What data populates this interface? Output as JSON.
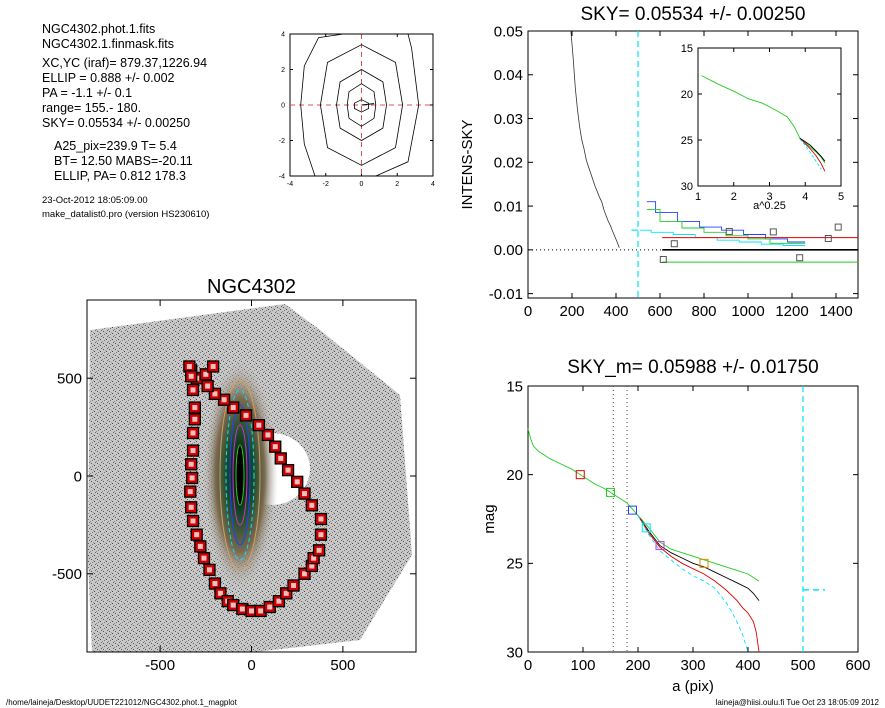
{
  "header": {
    "lines_a": [
      "NGC4302.phot.1.fits",
      "NGC4302.1.finmask.fits"
    ],
    "lines_b": [
      "XC,YC (iraf)=   879.37,1226.94",
      "ELLIP = 0.888 +/- 0.002",
      "PA    =  -1.1 +/-   0.1",
      "range=  155.-  180.",
      "SKY= 0.05534 +/- 0.00250"
    ],
    "lines_c": [
      "A25_pix=239.9   T= 5.4",
      "BT=  12.50   MABS=-20.11",
      "ELLIP, PA= 0.812  178.3"
    ],
    "date": "23-Oct-2012 18:05:09.00",
    "program": "make_datalist0.pro (version HS230610)"
  },
  "footer": {
    "left": "/home/laineja/Desktop/UUDET221012/NGC4302.phot.1_magplot",
    "right": "laineja@hiisi.oulu.fi  Tue Oct 23 18:05:09 2012"
  },
  "colors": {
    "cyan": "#00e5ff",
    "red": "#e00000",
    "green": "#22cc22",
    "blue": "#2040ff",
    "magenta": "#cc33cc",
    "orange": "#e08a00",
    "gray": "#666666",
    "maskred": "#cc0000"
  },
  "chart_data": [
    {
      "id": "contour",
      "type": "contour",
      "xlim": [
        -4,
        4
      ],
      "ylim": [
        -4,
        4
      ],
      "xticks": [
        -4,
        -2,
        0,
        2,
        4
      ],
      "yticks": [
        -4,
        -2,
        0,
        2,
        4
      ],
      "contours": [
        [
          [
            0.0,
            1.2
          ],
          [
            0.7,
            0.75
          ],
          [
            0.8,
            0
          ],
          [
            0.7,
            -0.75
          ],
          [
            0.0,
            -1.2
          ],
          [
            -0.7,
            -0.75
          ],
          [
            -0.8,
            0
          ],
          [
            -0.7,
            0.75
          ]
        ],
        [
          [
            0.0,
            2.0
          ],
          [
            1.2,
            1.3
          ],
          [
            1.4,
            0
          ],
          [
            1.2,
            -1.3
          ],
          [
            0.0,
            -2.0
          ],
          [
            -1.2,
            -1.3
          ],
          [
            -1.4,
            0
          ],
          [
            -1.2,
            1.3
          ]
        ],
        [
          [
            0.0,
            3.4
          ],
          [
            1.9,
            2.4
          ],
          [
            2.3,
            0
          ],
          [
            1.9,
            -2.4
          ],
          [
            0.0,
            -3.4
          ],
          [
            -1.9,
            -2.4
          ],
          [
            -2.3,
            0
          ],
          [
            -1.9,
            2.4
          ]
        ],
        [
          [
            -1.0,
            4.0
          ],
          [
            2.6,
            4.0
          ],
          [
            2.8,
            3.2
          ],
          [
            3.2,
            0
          ],
          [
            2.6,
            -3.2
          ],
          [
            0.8,
            -4.0
          ],
          [
            -2.6,
            -4.0
          ],
          [
            -3.2,
            -2.2
          ],
          [
            -3.4,
            0
          ],
          [
            -3.2,
            2.2
          ],
          [
            -2.4,
            3.8
          ]
        ]
      ],
      "inner": [
        [
          0,
          0.3
        ],
        [
          0.4,
          0.1
        ],
        [
          0.4,
          -0.2
        ],
        [
          0,
          -0.4
        ],
        [
          -0.4,
          -0.2
        ],
        [
          -0.4,
          0.1
        ]
      ],
      "center_spokes": [
        [
          0,
          0
        ],
        [
          0.7,
          0.08
        ]
      ]
    },
    {
      "id": "sky",
      "type": "line",
      "title": "SKY= 0.05534 +/- 0.00250",
      "ylabel": "INTENS-SKY",
      "xlim": [
        0,
        1500
      ],
      "ylim": [
        -0.011,
        0.05
      ],
      "xticks": [
        0,
        200,
        400,
        600,
        800,
        1000,
        1200,
        1400
      ],
      "yticks": [
        -0.01,
        0.0,
        0.01,
        0.02,
        0.03,
        0.04,
        0.05
      ],
      "ytick_labels": [
        "-0.01",
        "0.00",
        "0.01",
        "0.02",
        "0.03",
        "0.04",
        "0.05"
      ],
      "vline_cyan": 500,
      "profile": {
        "x": [
          195,
          205,
          215,
          225,
          235,
          245,
          255,
          265,
          275,
          285,
          295,
          305,
          315,
          325,
          335,
          345,
          355,
          365,
          375,
          385,
          395,
          405,
          415
        ],
        "y": [
          0.05,
          0.044,
          0.037,
          0.032,
          0.028,
          0.025,
          0.023,
          0.0205,
          0.019,
          0.0175,
          0.016,
          0.0145,
          0.0133,
          0.012,
          0.011,
          0.0092,
          0.0078,
          0.0065,
          0.0055,
          0.0042,
          0.003,
          0.0018,
          0.0005
        ]
      },
      "steps": [
        {
          "name": "",
          "color": "#2040ff",
          "x": [
            540,
            580,
            580,
            680,
            680,
            780,
            780,
            880,
            880,
            980,
            980,
            1080,
            1080,
            1180,
            1180,
            1260
          ],
          "y": [
            0.011,
            0.011,
            0.0085,
            0.0085,
            0.0065,
            0.0065,
            0.0052,
            0.0052,
            0.0045,
            0.0045,
            0.0035,
            0.0035,
            0.0025,
            0.0025,
            0.0018,
            0.0018
          ]
        },
        {
          "name": "",
          "color": "#22cc22",
          "x": [
            540,
            600,
            600,
            700,
            700,
            800,
            800,
            900,
            900,
            1000,
            1000,
            1100,
            1100,
            1260
          ],
          "y": [
            0.0092,
            0.0092,
            0.0065,
            0.0065,
            0.005,
            0.005,
            0.004,
            0.004,
            0.0032,
            0.0032,
            0.0025,
            0.0025,
            0.0015,
            0.0015
          ]
        },
        {
          "name": "",
          "color": "#00e5ff",
          "x": [
            510,
            560,
            560,
            660,
            660,
            760,
            760,
            860,
            860,
            960,
            960,
            1060,
            1060,
            1160,
            1160,
            1260
          ],
          "y": [
            0.0045,
            0.0045,
            0.004,
            0.004,
            0.0035,
            0.0035,
            0.0028,
            0.0028,
            0.0022,
            0.0022,
            0.0018,
            0.0018,
            0.0013,
            0.0013,
            0.001,
            0.001
          ]
        }
      ],
      "hlines": [
        {
          "color": "#e00000",
          "y": 0.0028,
          "x": [
            610,
            1500
          ]
        },
        {
          "color": "#22cc22",
          "y": -0.0028,
          "x": [
            610,
            1500
          ]
        },
        {
          "color": "#000000",
          "y": 0.0,
          "x": [
            610,
            1500
          ]
        }
      ],
      "squares": {
        "x": [
          615,
          665,
          915,
          1115,
          1235,
          1365,
          1410
        ],
        "y": [
          -0.0022,
          0.0014,
          0.0042,
          0.0041,
          -0.0018,
          0.0026,
          0.0052
        ]
      },
      "inset": {
        "xlabel": "a^0.25",
        "xlim": [
          1,
          5
        ],
        "ylim": [
          15,
          30
        ],
        "xticks": [
          1,
          2,
          3,
          4,
          5
        ],
        "yticks": [
          15,
          20,
          25,
          30
        ],
        "series": [
          {
            "name": "",
            "color": "#22cc22",
            "x": [
              1.1,
              1.3,
              1.6,
              2.0,
              2.4,
              2.8,
              3.2,
              3.5,
              3.7,
              3.85,
              4.0,
              4.15,
              4.3,
              4.45,
              4.55
            ],
            "y": [
              18.0,
              18.4,
              19.0,
              19.7,
              20.5,
              21.0,
              21.8,
              22.5,
              23.6,
              24.8,
              25.3,
              25.8,
              26.3,
              26.9,
              27.5
            ]
          },
          {
            "name": "",
            "color": "#e00000",
            "x": [
              3.85,
              4.0,
              4.15,
              4.3,
              4.45,
              4.55
            ],
            "y": [
              24.8,
              25.4,
              26.0,
              26.7,
              27.6,
              28.4
            ]
          },
          {
            "name": "",
            "color": "#000000",
            "x": [
              3.85,
              4.0,
              4.15,
              4.3,
              4.45,
              4.55
            ],
            "y": [
              24.8,
              25.2,
              25.6,
              26.2,
              26.8,
              27.3
            ]
          },
          {
            "name": "",
            "color": "#00e5ff",
            "x": [
              3.85,
              4.0,
              4.15,
              4.3,
              4.45
            ],
            "y": [
              24.9,
              25.6,
              26.4,
              27.3,
              28.2
            ]
          }
        ]
      }
    },
    {
      "id": "image",
      "type": "scatter",
      "title": "NGC4302",
      "xlim": [
        -900,
        900
      ],
      "ylim": [
        -900,
        900
      ],
      "xticks": [
        -500,
        0,
        500
      ],
      "yticks": [
        -500,
        0,
        500
      ],
      "mask_squares": {
        "x": [
          -310,
          -310,
          -320,
          -320,
          -330,
          -325,
          -335,
          -330,
          -320,
          -300,
          -280,
          -260,
          -230,
          -200,
          -170,
          -130,
          -100,
          -50,
          0,
          50,
          100,
          150,
          190,
          230,
          290,
          330,
          340,
          370,
          380,
          380,
          330,
          290,
          250,
          200,
          160,
          130,
          90,
          40,
          -30,
          -100,
          -150,
          -200,
          -240,
          -300,
          -330,
          -340,
          -330,
          -320,
          -250,
          -210
        ],
        "y": [
          350,
          290,
          220,
          130,
          60,
          -10,
          -80,
          -160,
          -230,
          -300,
          -360,
          -420,
          -480,
          -550,
          -600,
          -640,
          -660,
          -680,
          -690,
          -690,
          -670,
          -640,
          -600,
          -560,
          -500,
          -460,
          -420,
          -380,
          -300,
          -220,
          -150,
          -90,
          -30,
          30,
          90,
          150,
          210,
          260,
          310,
          350,
          390,
          420,
          460,
          500,
          540,
          560,
          510,
          440,
          520,
          560
        ]
      }
    },
    {
      "id": "mag",
      "type": "line",
      "title": "SKY_m=  0.05988 +/- 0.01750",
      "xlabel": "a (pix)",
      "ylabel": "mag",
      "xlim": [
        0,
        600
      ],
      "ylim": [
        15,
        30
      ],
      "xticks": [
        0,
        100,
        200,
        300,
        400,
        500,
        600
      ],
      "yticks": [
        15,
        20,
        25,
        30
      ],
      "vlines_dotted": [
        155,
        180
      ],
      "vline_cyan": 500,
      "cyan_tail": {
        "x": [
          500,
          540
        ],
        "y": [
          26.5,
          26.5
        ]
      },
      "series": [
        {
          "name": "",
          "color": "#22cc22",
          "x": [
            0,
            5,
            10,
            20,
            40,
            60,
            80,
            100,
            120,
            140,
            160,
            180,
            200,
            220,
            240,
            260,
            280,
            300,
            320,
            340,
            360,
            380,
            400,
            420
          ],
          "y": [
            17.4,
            18.0,
            18.4,
            18.7,
            19.1,
            19.4,
            19.7,
            20.1,
            20.5,
            20.8,
            21.2,
            21.6,
            22.3,
            23.0,
            23.8,
            24.2,
            24.4,
            24.6,
            24.8,
            25.0,
            25.2,
            25.4,
            25.6,
            26.0
          ]
        },
        {
          "name": "",
          "color": "#000000",
          "x": [
            200,
            220,
            240,
            260,
            280,
            300,
            320,
            340,
            360,
            380,
            400,
            410,
            420
          ],
          "y": [
            22.3,
            23.2,
            24.0,
            24.4,
            24.7,
            25.0,
            25.2,
            25.5,
            25.8,
            26.1,
            26.4,
            26.7,
            27.1
          ]
        },
        {
          "name": "",
          "color": "#e00000",
          "x": [
            200,
            220,
            240,
            260,
            280,
            300,
            320,
            340,
            360,
            380,
            390,
            400,
            410,
            415,
            420
          ],
          "y": [
            22.3,
            23.3,
            24.1,
            24.6,
            25.0,
            25.3,
            25.6,
            26.0,
            26.5,
            27.1,
            27.5,
            27.8,
            28.3,
            28.9,
            30.0
          ]
        },
        {
          "name": "",
          "color": "#00e5ff",
          "x": [
            200,
            220,
            240,
            260,
            280,
            300,
            320,
            340,
            350,
            360,
            370,
            380,
            390,
            400
          ],
          "y": [
            22.3,
            23.4,
            24.3,
            24.8,
            25.3,
            25.7,
            26.0,
            26.4,
            26.8,
            27.2,
            27.7,
            28.3,
            29.0,
            30.0
          ]
        }
      ],
      "squares": [
        {
          "color": "#e00000",
          "x": 95,
          "y": 20.0
        },
        {
          "color": "#22cc22",
          "x": 150,
          "y": 21.0
        },
        {
          "color": "#2040ff",
          "x": 190,
          "y": 22.0
        },
        {
          "color": "#00e5ff",
          "x": 215,
          "y": 23.0
        },
        {
          "color": "#cc33cc",
          "x": 240,
          "y": 24.0
        },
        {
          "color": "#e08a00",
          "x": 320,
          "y": 25.0
        }
      ]
    }
  ]
}
